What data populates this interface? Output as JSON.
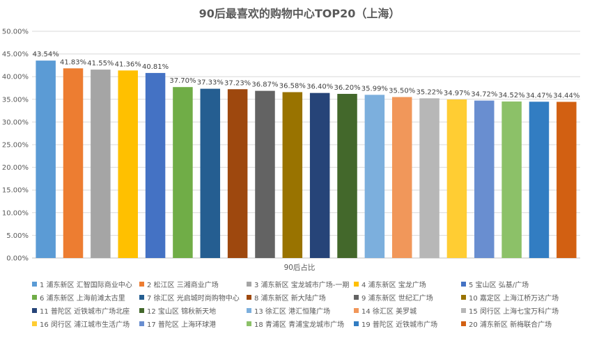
{
  "chart_data": {
    "type": "bar",
    "title": "90后最喜欢的购物中心TOP20（上海）",
    "xlabel": "90后占比",
    "ylabel": "",
    "ylim": [
      0,
      0.5
    ],
    "yticks": [
      "0.00%",
      "5.00%",
      "10.00%",
      "15.00%",
      "20.00%",
      "25.00%",
      "30.00%",
      "35.00%",
      "40.00%",
      "45.00%",
      "50.00%"
    ],
    "grid": true,
    "legend_position": "bottom",
    "series": [
      {
        "name": "1 浦东新区 汇智国际商业中心",
        "value": 0.4354,
        "label": "43.54%",
        "color": "#5B9BD5"
      },
      {
        "name": "2 松江区 三湘商业广场",
        "value": 0.4183,
        "label": "41.83%",
        "color": "#ED7D31"
      },
      {
        "name": "3 浦东新区 宝龙城市广场-一期",
        "value": 0.4155,
        "label": "41.55%",
        "color": "#A5A5A5"
      },
      {
        "name": "4 浦东新区 宝龙广场",
        "value": 0.4136,
        "label": "41.36%",
        "color": "#FFC000"
      },
      {
        "name": "5 宝山区 弘基/广场",
        "value": 0.4081,
        "label": "40.81%",
        "color": "#4472C4"
      },
      {
        "name": "6 浦东新区 上海前滩太古里",
        "value": 0.377,
        "label": "37.70%",
        "color": "#70AD47"
      },
      {
        "name": "7 徐汇区 光启城时尚购物中心",
        "value": 0.3733,
        "label": "37.33%",
        "color": "#255E91"
      },
      {
        "name": "8 浦东新区 新大陆广场",
        "value": 0.3723,
        "label": "37.23%",
        "color": "#9E480E"
      },
      {
        "name": "9 浦东新区 世纪汇广场",
        "value": 0.3687,
        "label": "36.87%",
        "color": "#636363"
      },
      {
        "name": "10 嘉定区 上海江桥万达广场",
        "value": 0.3658,
        "label": "36.58%",
        "color": "#997300"
      },
      {
        "name": "11 普陀区 近铁城市广场北座",
        "value": 0.364,
        "label": "36.40%",
        "color": "#264478"
      },
      {
        "name": "12 宝山区 锦秋新天地",
        "value": 0.362,
        "label": "36.20%",
        "color": "#43682B"
      },
      {
        "name": "13 徐汇区 港汇恒隆广场",
        "value": 0.3599,
        "label": "35.99%",
        "color": "#7CAFDD"
      },
      {
        "name": "14 徐汇区 美罗城",
        "value": 0.355,
        "label": "35.50%",
        "color": "#F1975A"
      },
      {
        "name": "15 闵行区 上海七宝万科广场",
        "value": 0.3522,
        "label": "35.22%",
        "color": "#B7B7B7"
      },
      {
        "name": "16 闵行区 浦江城市生活广场",
        "value": 0.3497,
        "label": "34.97%",
        "color": "#FFCD33"
      },
      {
        "name": "17 普陀区 上海环球港",
        "value": 0.3472,
        "label": "34.72%",
        "color": "#698ED0"
      },
      {
        "name": "18 青浦区 青浦宝龙城市广场",
        "value": 0.3452,
        "label": "34.52%",
        "color": "#8CC168"
      },
      {
        "name": "19 普陀区 近铁城市广场",
        "value": 0.3447,
        "label": "34.47%",
        "color": "#327DC2"
      },
      {
        "name": "20 浦东新区 新梅联合广场",
        "value": 0.3444,
        "label": "34.44%",
        "color": "#D26012"
      }
    ]
  }
}
